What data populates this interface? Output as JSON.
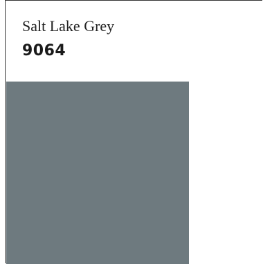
{
  "color": {
    "name": "Salt Lake Grey",
    "code": "9064",
    "hex": "#6E7A7F"
  }
}
